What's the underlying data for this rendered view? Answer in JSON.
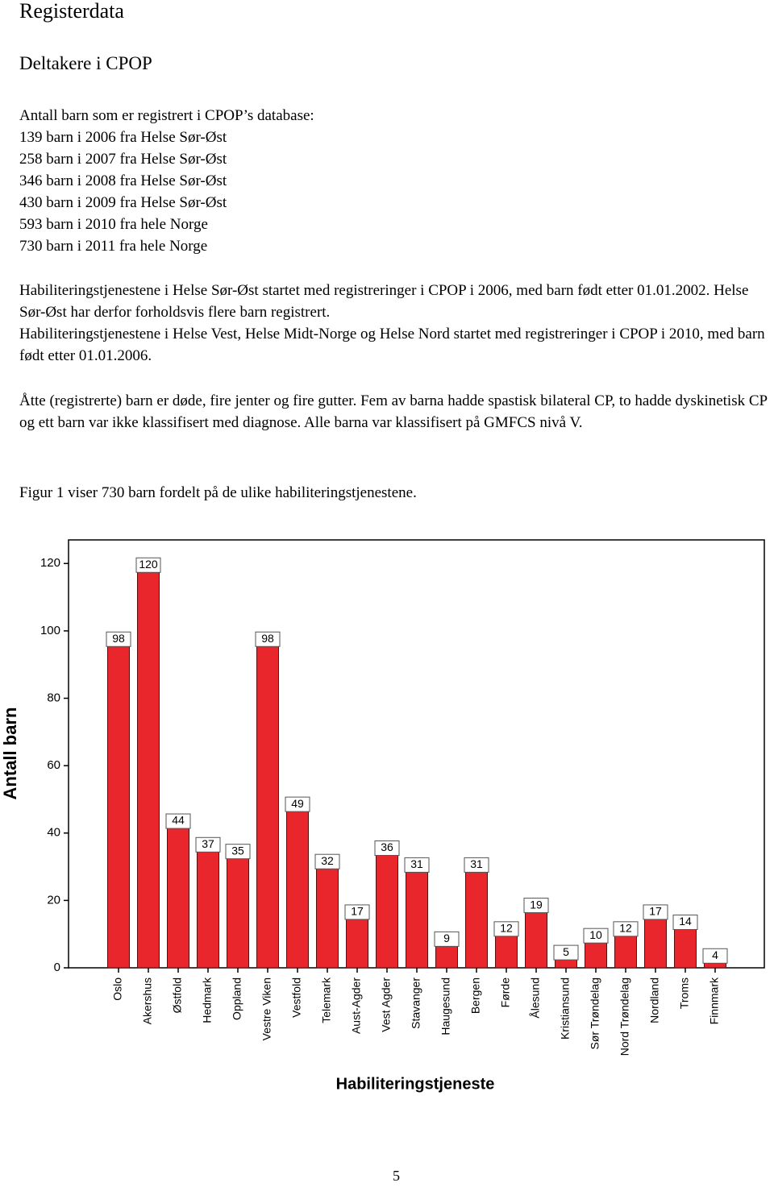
{
  "title": "Registerdata",
  "subtitle": "Deltakere i CPOP",
  "intro": "Antall barn som er registrert i CPOP’s database:",
  "list": [
    "139 barn i 2006 fra Helse Sør-Øst",
    "258 barn i 2007 fra Helse Sør-Øst",
    "346 barn i 2008 fra Helse Sør-Øst",
    "430 barn i 2009 fra Helse Sør-Øst",
    "593 barn i 2010 fra hele Norge",
    "730 barn i 2011 fra hele Norge"
  ],
  "paragraphs": [
    "Habiliteringstjenestene i Helse Sør-Øst startet med registreringer i CPOP i 2006, med barn født etter 01.01.2002. Helse Sør-Øst har derfor forholdsvis flere barn registrert.",
    "Habiliteringstjenestene i Helse Vest, Helse Midt-Norge og Helse Nord startet med registreringer i CPOP i 2010, med barn født etter 01.01.2006.",
    "Åtte (registrerte) barn er døde, fire jenter og fire gutter. Fem av barna hadde spastisk bilateral CP, to hadde dyskinetisk CP og ett barn var ikke klassifisert med diagnose. Alle barna var klassifisert på GMFCS nivå V.",
    "Figur 1 viser 730 barn fordelt på de ulike habiliteringstjenestene."
  ],
  "chart_data": {
    "type": "bar",
    "categories": [
      "Oslo",
      "Akershus",
      "Østfold",
      "Hedmark",
      "Oppland",
      "Vestre Viken",
      "Vestfold",
      "Telemark",
      "Aust-Agder",
      "Vest Agder",
      "Stavanger",
      "Haugesund",
      "Bergen",
      "Førde",
      "Ålesund",
      "Kristiansund",
      "Sør Trøndelag",
      "Nord Trøndelag",
      "Nordland",
      "Troms",
      "Finnmark"
    ],
    "values": [
      98,
      120,
      44,
      37,
      35,
      98,
      49,
      32,
      17,
      36,
      31,
      9,
      31,
      12,
      19,
      5,
      10,
      12,
      17,
      14,
      4
    ],
    "color": "#e8262b",
    "ylim": [
      0,
      127
    ],
    "yticks": [
      0,
      20,
      40,
      60,
      80,
      100,
      120
    ],
    "ylabel": "Antall barn",
    "xlabel": "Habiliteringstjeneste"
  },
  "page_number": "5"
}
